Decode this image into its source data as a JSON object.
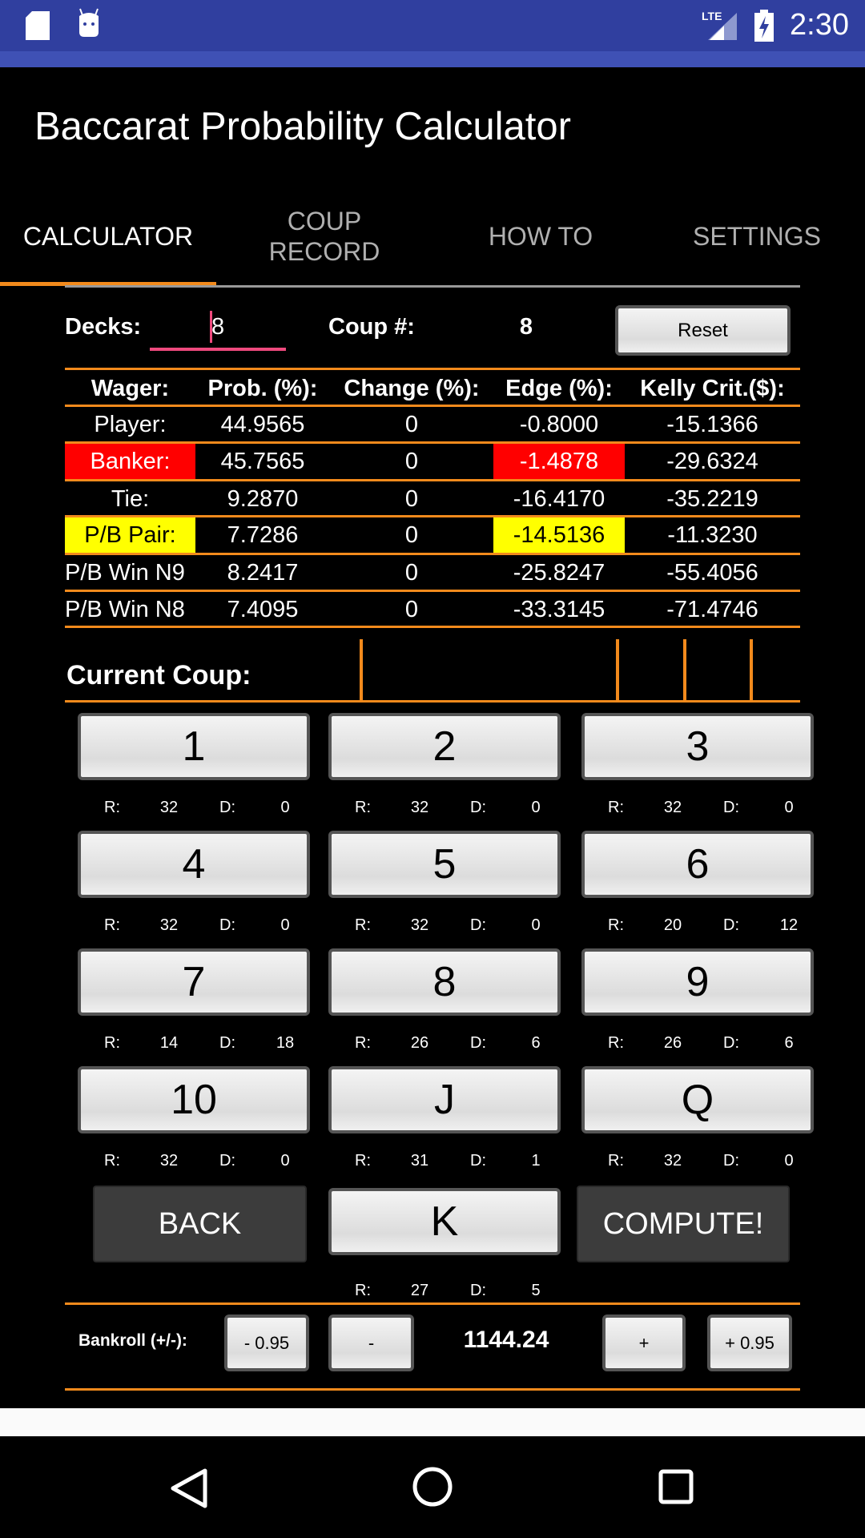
{
  "status_bar": {
    "time": "2:30",
    "icons": [
      "sd-card-icon",
      "android-icon",
      "lte-signal-icon",
      "battery-charging-icon"
    ]
  },
  "app": {
    "title": "Baccarat Probability Calculator"
  },
  "tabs": [
    {
      "label": "CALCULATOR",
      "active": true
    },
    {
      "label": "COUP\nRECORD"
    },
    {
      "label": "HOW TO"
    },
    {
      "label": "SETTINGS"
    }
  ],
  "decks": {
    "label": "Decks:",
    "value": "8"
  },
  "coup": {
    "label": "Coup #:",
    "value": "8"
  },
  "reset_label": "Reset",
  "table": {
    "headers": [
      "Wager:",
      "Prob. (%):",
      "Change (%):",
      "Edge (%):",
      "Kelly Crit.($):"
    ],
    "rows": [
      [
        "Player:",
        "44.9565",
        "0",
        "-0.8000",
        "-15.1366"
      ],
      [
        "Banker:",
        "45.7565",
        "0",
        "-1.4878",
        "-29.6324"
      ],
      [
        "Tie:",
        "9.2870",
        "0",
        "-16.4170",
        "-35.2219"
      ],
      [
        "P/B Pair:",
        "7.7286",
        "0",
        "-14.5136",
        "-11.3230"
      ],
      [
        "P/B Win N9",
        "8.2417",
        "0",
        "-25.8247",
        "-55.4056"
      ],
      [
        "P/B Win N8",
        "7.4095",
        "0",
        "-33.3145",
        "-71.4746"
      ]
    ],
    "highlights": {
      "Banker:": "#ff0000",
      "P/B Pair:": "#ffff00"
    }
  },
  "current_coup_label": "Current Coup:",
  "cards": [
    {
      "label": "1",
      "r": "32",
      "d": "0"
    },
    {
      "label": "2",
      "r": "32",
      "d": "0"
    },
    {
      "label": "3",
      "r": "32",
      "d": "0"
    },
    {
      "label": "4",
      "r": "32",
      "d": "0"
    },
    {
      "label": "5",
      "r": "32",
      "d": "0"
    },
    {
      "label": "6",
      "r": "20",
      "d": "12"
    },
    {
      "label": "7",
      "r": "14",
      "d": "18"
    },
    {
      "label": "8",
      "r": "26",
      "d": "6"
    },
    {
      "label": "9",
      "r": "26",
      "d": "6"
    },
    {
      "label": "10",
      "r": "32",
      "d": "0"
    },
    {
      "label": "J",
      "r": "31",
      "d": "1"
    },
    {
      "label": "Q",
      "r": "32",
      "d": "0"
    },
    {
      "label": "K",
      "r": "27",
      "d": "5"
    }
  ],
  "r_label": "R:",
  "d_label": "D:",
  "back_label": "BACK",
  "compute_label": "COMPUTE!",
  "bankroll": {
    "label": "Bankroll (+/-):",
    "minus_095": "- 0.95",
    "minus": "-",
    "value": "1144.24",
    "plus": "+",
    "plus_095": "+ 0.95"
  },
  "colors": {
    "accent": "#f28a1c",
    "status_bar": "#303f9f",
    "toolbar": "#3f51b5",
    "input_underline": "#ef4a7e"
  }
}
